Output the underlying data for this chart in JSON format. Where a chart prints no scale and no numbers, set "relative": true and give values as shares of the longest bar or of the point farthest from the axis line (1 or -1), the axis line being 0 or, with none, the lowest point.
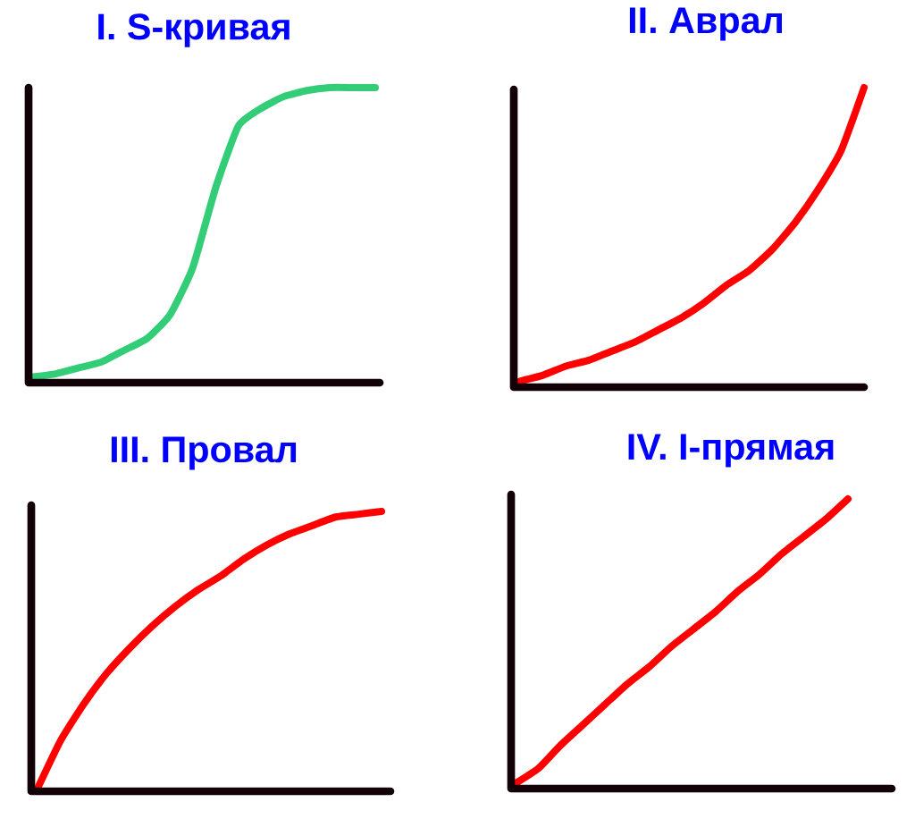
{
  "chart_data": [
    {
      "type": "line",
      "title": "I. S-кривая",
      "relative": true,
      "color": "#33cc77",
      "categories": [
        null,
        null,
        null,
        null,
        null,
        null,
        null,
        null,
        null,
        null,
        null,
        null,
        null,
        null,
        null,
        null
      ],
      "values": [
        0.02,
        0.03,
        0.05,
        0.07,
        0.11,
        0.15,
        0.23,
        0.39,
        0.66,
        0.87,
        0.93,
        0.97,
        0.99,
        1.0,
        1.0,
        1.0
      ]
    },
    {
      "type": "line",
      "title": "II. Аврал",
      "relative": true,
      "color": "#ff0000",
      "categories": [
        null,
        null,
        null,
        null,
        null,
        null,
        null,
        null,
        null,
        null,
        null,
        null,
        null,
        null,
        null,
        null
      ],
      "values": [
        0.02,
        0.04,
        0.07,
        0.09,
        0.12,
        0.15,
        0.19,
        0.23,
        0.28,
        0.34,
        0.39,
        0.46,
        0.55,
        0.66,
        0.79,
        1.0
      ]
    },
    {
      "type": "line",
      "title": "III. Провал",
      "relative": true,
      "color": "#ff0000",
      "categories": [
        null,
        null,
        null,
        null,
        null,
        null,
        null,
        null,
        null,
        null,
        null,
        null,
        null,
        null,
        null,
        null
      ],
      "values": [
        0.01,
        0.18,
        0.31,
        0.42,
        0.51,
        0.59,
        0.66,
        0.72,
        0.77,
        0.83,
        0.88,
        0.92,
        0.95,
        0.98,
        0.99,
        1.0
      ]
    },
    {
      "type": "line",
      "title": "IV. I-прямая",
      "relative": true,
      "color": "#ff0000",
      "categories": [
        null,
        null,
        null,
        null,
        null,
        null,
        null,
        null,
        null,
        null,
        null,
        null,
        null,
        null,
        null,
        null
      ],
      "values": [
        0.02,
        0.07,
        0.15,
        0.22,
        0.29,
        0.36,
        0.42,
        0.49,
        0.55,
        0.61,
        0.68,
        0.74,
        0.81,
        0.87,
        0.93,
        1.0
      ]
    }
  ]
}
